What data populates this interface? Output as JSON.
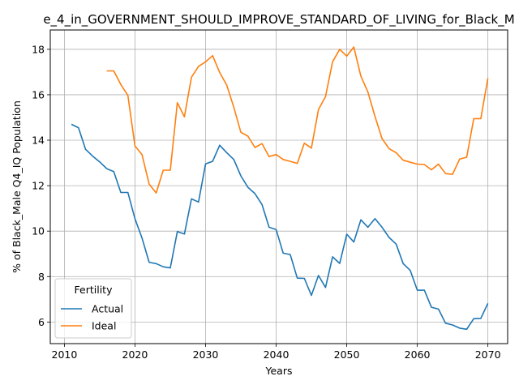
{
  "chart_data": {
    "type": "line",
    "title": "e_4_in_GOVERNMENT_SHOULD_IMPROVE_STANDARD_OF_LIVING_for_Black_M",
    "xlabel": "Years",
    "ylabel": "% of Black_Male Q4_IQ Population",
    "xlim": [
      2008.0,
      2072.8
    ],
    "ylim": [
      5.05,
      18.85
    ],
    "xticks": [
      2010,
      2020,
      2030,
      2040,
      2050,
      2060,
      2070
    ],
    "yticks": [
      6,
      8,
      10,
      12,
      14,
      16,
      18
    ],
    "grid": true,
    "legend": {
      "title": "Fertility",
      "placement": "lower-left"
    },
    "series": [
      {
        "name": "Actual",
        "color": "#1f77b4",
        "x": [
          2011,
          2012,
          2013,
          2014,
          2015,
          2016,
          2017,
          2018,
          2019,
          2020,
          2021,
          2022,
          2023,
          2024,
          2025,
          2026,
          2027,
          2028,
          2029,
          2030,
          2031,
          2032,
          2033,
          2034,
          2035,
          2036,
          2037,
          2038,
          2039,
          2040,
          2041,
          2042,
          2043,
          2044,
          2045,
          2046,
          2047,
          2048,
          2049,
          2050,
          2051,
          2052,
          2053,
          2054,
          2055,
          2056,
          2057,
          2058,
          2059,
          2060,
          2061,
          2062,
          2063,
          2064,
          2065,
          2066,
          2067,
          2068,
          2069,
          2070
        ],
        "y": [
          14.7,
          14.55,
          13.6,
          13.3,
          13.05,
          12.75,
          12.62,
          11.7,
          11.7,
          10.55,
          9.7,
          8.63,
          8.57,
          8.43,
          8.38,
          9.98,
          9.87,
          11.42,
          11.28,
          12.96,
          13.07,
          13.78,
          13.45,
          13.15,
          12.43,
          11.93,
          11.65,
          11.17,
          10.17,
          10.07,
          9.03,
          8.97,
          7.93,
          7.92,
          7.17,
          8.05,
          7.52,
          8.87,
          8.58,
          9.86,
          9.52,
          10.5,
          10.17,
          10.55,
          10.17,
          9.72,
          9.43,
          8.57,
          8.27,
          7.4,
          7.4,
          6.65,
          6.57,
          5.95,
          5.87,
          5.73,
          5.68,
          6.15,
          6.16,
          6.82
        ]
      },
      {
        "name": "Ideal",
        "color": "#ff7f0e",
        "x": [
          2016,
          2017,
          2018,
          2019,
          2020,
          2021,
          2022,
          2023,
          2024,
          2025,
          2026,
          2027,
          2028,
          2029,
          2030,
          2031,
          2032,
          2033,
          2034,
          2035,
          2036,
          2037,
          2038,
          2039,
          2040,
          2041,
          2042,
          2043,
          2044,
          2045,
          2046,
          2047,
          2048,
          2049,
          2050,
          2051,
          2052,
          2053,
          2054,
          2055,
          2056,
          2057,
          2058,
          2059,
          2060,
          2061,
          2062,
          2063,
          2064,
          2065,
          2066,
          2067,
          2068,
          2069,
          2070
        ],
        "y": [
          17.05,
          17.05,
          16.45,
          15.97,
          13.75,
          13.37,
          12.07,
          11.68,
          12.68,
          12.68,
          15.65,
          15.03,
          16.77,
          17.25,
          17.45,
          17.72,
          16.98,
          16.42,
          15.45,
          14.35,
          14.18,
          13.68,
          13.85,
          13.28,
          13.37,
          13.15,
          13.07,
          12.98,
          13.87,
          13.65,
          15.35,
          15.92,
          17.45,
          18.0,
          17.7,
          18.1,
          16.82,
          16.12,
          15.05,
          14.07,
          13.63,
          13.45,
          13.12,
          13.03,
          12.95,
          12.93,
          12.7,
          12.95,
          12.53,
          12.5,
          13.17,
          13.25,
          14.95,
          14.95,
          16.73
        ]
      }
    ]
  }
}
